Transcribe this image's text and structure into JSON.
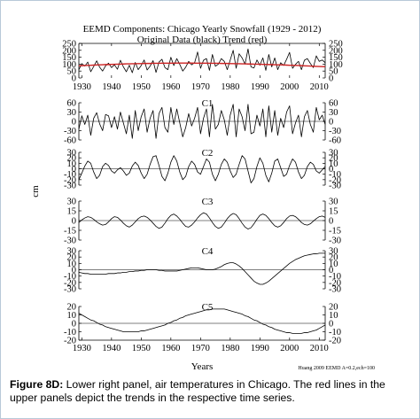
{
  "chart_data": {
    "type": "line",
    "title": "EEMD Components: Chicago Yearly Snowfall (1929 - 2012)",
    "subtitle": "Original Data (black)   Trend (red)",
    "xlabel": "Years",
    "ylabel": "cm",
    "note": "Huang 2009 EEMD A=0.2,ech=100",
    "x_ticks": [
      1930,
      1940,
      1950,
      1960,
      1970,
      1980,
      1990,
      2000,
      2010
    ],
    "xlim": [
      1929,
      2012
    ],
    "colors": {
      "data": "#000000",
      "trend": "#cc2222",
      "zero": "#000000"
    },
    "panels": [
      {
        "name": "",
        "ylim": [
          0,
          250
        ],
        "y_ticks": [
          0,
          50,
          100,
          150,
          200,
          250
        ],
        "zero_line": false,
        "start_year": 1929,
        "series": [
          {
            "role": "data",
            "values": [
              60,
              104,
              86,
              115,
              45,
              83,
              124,
              78,
              50,
              88,
              107,
              75,
              95,
              63,
              128,
              80,
              45,
              92,
              38,
              112,
              60,
              90,
              130,
              58,
              85,
              125,
              40,
              115,
              135,
              75,
              60,
              150,
              90,
              140,
              98,
              50,
              78,
              120,
              95,
              110,
              188,
              70,
              128,
              140,
              55,
              170,
              85,
              100,
              140,
              120,
              60,
              130,
              200,
              70,
              175,
              145,
              100,
              210,
              80,
              72,
              130,
              92,
              145,
              55,
              170,
              80,
              145,
              60,
              110,
              90,
              135,
              185,
              70,
              98,
              120,
              60,
              128,
              140,
              105,
              75,
              160,
              120,
              130,
              110
            ]
          },
          {
            "role": "trend",
            "values": [
              88,
              89,
              90,
              91,
              92,
              93,
              94,
              95,
              96,
              97,
              97,
              98,
              99,
              100,
              100,
              101,
              102,
              102,
              103,
              103,
              104,
              104,
              105,
              105,
              105,
              106,
              106,
              106,
              107,
              107,
              107,
              107,
              107,
              108,
              108,
              108,
              108,
              108,
              108,
              107,
              107,
              107,
              107,
              107,
              106,
              106,
              106,
              106,
              105,
              105,
              105,
              104,
              104,
              103,
              103,
              102,
              102,
              101,
              101,
              100,
              100,
              99,
              98,
              98,
              97,
              97,
              96,
              95,
              95,
              94,
              93,
              92,
              92,
              91,
              90,
              89,
              88,
              87,
              86,
              85,
              84,
              83,
              82,
              81
            ]
          }
        ]
      },
      {
        "name": "C1",
        "ylim": [
          -60,
          60
        ],
        "y_ticks": [
          -60,
          -30,
          0,
          30,
          60
        ],
        "zero_line": true,
        "start_year": 1929,
        "series": [
          {
            "role": "data",
            "values": [
              -25,
              18,
              -10,
              20,
              -45,
              10,
              28,
              -8,
              -30,
              22,
              18,
              -20,
              15,
              -25,
              30,
              -5,
              -40,
              20,
              -55,
              35,
              -30,
              15,
              40,
              -35,
              10,
              35,
              -55,
              25,
              45,
              -20,
              -35,
              45,
              -10,
              40,
              -5,
              -50,
              -20,
              25,
              -15,
              10,
              45,
              -40,
              10,
              40,
              -50,
              55,
              -25,
              -10,
              35,
              5,
              -45,
              20,
              55,
              -50,
              40,
              15,
              -30,
              55,
              -40,
              -35,
              20,
              -15,
              40,
              -50,
              50,
              -35,
              35,
              -45,
              10,
              -20,
              30,
              50,
              -40,
              -5,
              20,
              -50,
              15,
              35,
              -10,
              -35,
              45,
              5,
              20,
              -10
            ]
          }
        ]
      },
      {
        "name": "C2",
        "ylim": [
          -30,
          30
        ],
        "y_ticks": [
          -30,
          -20,
          -10,
          0,
          10,
          20,
          30
        ],
        "zero_line": true,
        "start_year": 1929,
        "series": [
          {
            "role": "data",
            "values": [
              -20,
              -8,
              5,
              14,
              10,
              -6,
              -18,
              -12,
              4,
              10,
              6,
              -4,
              -8,
              -2,
              2,
              -4,
              -12,
              -8,
              5,
              12,
              6,
              -8,
              -18,
              -10,
              8,
              22,
              24,
              6,
              -14,
              -22,
              -8,
              12,
              24,
              14,
              -6,
              -20,
              -14,
              4,
              14,
              8,
              -6,
              -10,
              4,
              18,
              12,
              -10,
              -22,
              -10,
              8,
              18,
              12,
              -4,
              -16,
              -10,
              8,
              24,
              18,
              -4,
              -26,
              -18,
              4,
              20,
              10,
              -12,
              -24,
              -8,
              14,
              18,
              2,
              -14,
              -10,
              6,
              18,
              12,
              -6,
              -18,
              -12,
              4,
              12,
              8,
              -4,
              -8,
              -2,
              4
            ]
          }
        ]
      },
      {
        "name": "C3",
        "ylim": [
          -30,
          30
        ],
        "y_ticks": [
          -30,
          -15,
          0,
          15,
          30
        ],
        "zero_line": true,
        "start_year": 1929,
        "series": [
          {
            "role": "data",
            "values": [
              -3,
              1,
              4,
              6,
              5,
              2,
              -2,
              -5,
              -7,
              -6,
              -2,
              3,
              6,
              5,
              1,
              -4,
              -8,
              -10,
              -7,
              -2,
              3,
              6,
              7,
              5,
              1,
              -4,
              -9,
              -12,
              -10,
              -4,
              3,
              8,
              10,
              7,
              2,
              -4,
              -9,
              -10,
              -7,
              -2,
              4,
              9,
              12,
              10,
              4,
              -3,
              -9,
              -12,
              -10,
              -4,
              3,
              8,
              11,
              9,
              3,
              -4,
              -10,
              -13,
              -11,
              -5,
              2,
              8,
              10,
              8,
              3,
              -3,
              -8,
              -10,
              -8,
              -3,
              3,
              7,
              8,
              6,
              2,
              -3,
              -6,
              -7,
              -5,
              -1,
              3,
              6,
              7,
              5
            ]
          }
        ]
      },
      {
        "name": "C4",
        "ylim": [
          -30,
          30
        ],
        "y_ticks": [
          -30,
          -20,
          -10,
          0,
          10,
          20,
          30
        ],
        "zero_line": true,
        "start_year": 1929,
        "series": [
          {
            "role": "data",
            "values": [
              -4,
              -5,
              -6,
              -6,
              -7,
              -7,
              -7,
              -7,
              -7,
              -7,
              -6,
              -6,
              -6,
              -5,
              -5,
              -4,
              -4,
              -3,
              -3,
              -2,
              -2,
              -1,
              -1,
              0,
              0,
              0,
              0,
              -1,
              -1,
              -2,
              -2,
              -2,
              -2,
              -2,
              -1,
              0,
              1,
              2,
              3,
              3,
              3,
              2,
              1,
              0,
              0,
              0,
              1,
              3,
              5,
              8,
              10,
              11,
              11,
              9,
              6,
              2,
              -3,
              -8,
              -13,
              -18,
              -21,
              -23,
              -23,
              -21,
              -18,
              -14,
              -10,
              -6,
              -2,
              2,
              6,
              10,
              13,
              16,
              18,
              20,
              22,
              23,
              24,
              25,
              25,
              26,
              26,
              26
            ]
          }
        ]
      },
      {
        "name": "C5",
        "ylim": [
          -20,
          20
        ],
        "y_ticks": [
          -20,
          -10,
          0,
          10,
          20
        ],
        "zero_line": true,
        "start_year": 1929,
        "series": [
          {
            "role": "data",
            "values": [
              12,
              10,
              8,
              6,
              4,
              3,
              1,
              -1,
              -2,
              -4,
              -5,
              -6,
              -7,
              -8,
              -9,
              -10,
              -10,
              -10,
              -10,
              -10,
              -10,
              -9,
              -9,
              -8,
              -7,
              -6,
              -5,
              -4,
              -3,
              -2,
              0,
              1,
              3,
              4,
              6,
              7,
              9,
              10,
              11,
              12,
              13,
              14,
              15,
              16,
              16,
              17,
              17,
              17,
              17,
              17,
              16,
              15,
              14,
              13,
              12,
              11,
              9,
              8,
              6,
              4,
              3,
              1,
              -1,
              -2,
              -4,
              -5,
              -7,
              -8,
              -9,
              -10,
              -11,
              -11,
              -12,
              -12,
              -12,
              -12,
              -11,
              -11,
              -10,
              -9,
              -8,
              -6,
              -4,
              -2
            ]
          }
        ]
      }
    ]
  },
  "caption": {
    "label": "Figure 8D:",
    "text": " Lower right panel, air temperatures in Chicago. The red lines in the upper panels depict the trends in the respective time series."
  }
}
